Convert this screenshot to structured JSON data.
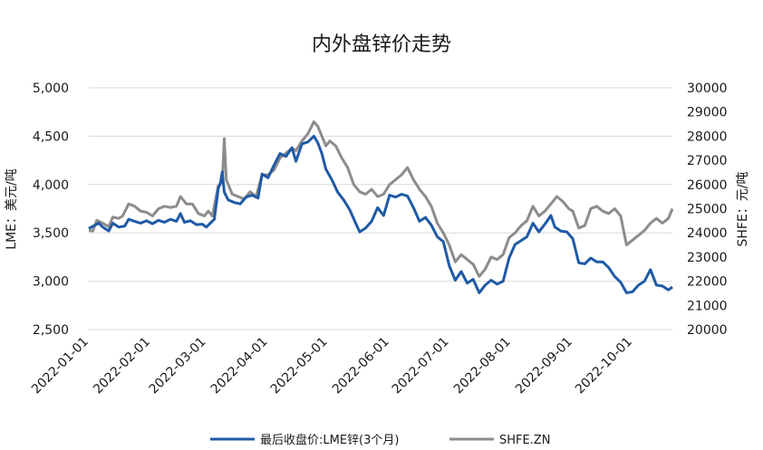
{
  "chart_data": {
    "type": "line",
    "title": "内外盘锌价走势",
    "ylabel_left": "LME：美元/吨",
    "ylabel_right": "SHFE：元/吨",
    "ylim_left": [
      2500,
      5000
    ],
    "ylim_right": [
      20000,
      30000
    ],
    "yticks_left": [
      "2,500",
      "3,000",
      "3,500",
      "4,000",
      "4,500",
      "5,000"
    ],
    "yticks_right": [
      "20000",
      "21000",
      "22000",
      "23000",
      "24000",
      "25000",
      "26000",
      "27000",
      "28000",
      "29000",
      "30000"
    ],
    "grid": true,
    "legend_position": "bottom",
    "x_tick_labels": [
      "2022-01-01",
      "2022-02-01",
      "2022-03-01",
      "2022-04-01",
      "2022-05-01",
      "2022-06-01",
      "2022-07-01",
      "2022-08-01",
      "2022-09-01",
      "2022-10-01"
    ],
    "series": [
      {
        "name": "最后收盘价:LME锌(3个月)",
        "axis": "left",
        "color": "#1f5aa6",
        "points": [
          [
            "2022-01-01",
            3545
          ],
          [
            "2022-01-04",
            3580
          ],
          [
            "2022-01-06",
            3600
          ],
          [
            "2022-01-08",
            3560
          ],
          [
            "2022-01-11",
            3520
          ],
          [
            "2022-01-13",
            3600
          ],
          [
            "2022-01-16",
            3560
          ],
          [
            "2022-01-19",
            3570
          ],
          [
            "2022-01-21",
            3640
          ],
          [
            "2022-01-24",
            3620
          ],
          [
            "2022-01-27",
            3600
          ],
          [
            "2022-01-30",
            3625
          ],
          [
            "2022-02-02",
            3595
          ],
          [
            "2022-02-05",
            3630
          ],
          [
            "2022-02-08",
            3610
          ],
          [
            "2022-02-11",
            3640
          ],
          [
            "2022-02-14",
            3620
          ],
          [
            "2022-02-16",
            3700
          ],
          [
            "2022-02-18",
            3610
          ],
          [
            "2022-02-21",
            3625
          ],
          [
            "2022-02-24",
            3585
          ],
          [
            "2022-02-27",
            3590
          ],
          [
            "2022-03-01",
            3560
          ],
          [
            "2022-03-03",
            3600
          ],
          [
            "2022-03-05",
            3640
          ],
          [
            "2022-03-07",
            3960
          ],
          [
            "2022-03-08",
            4010
          ],
          [
            "2022-03-09",
            4130
          ],
          [
            "2022-03-10",
            3920
          ],
          [
            "2022-03-12",
            3840
          ],
          [
            "2022-03-15",
            3815
          ],
          [
            "2022-03-18",
            3800
          ],
          [
            "2022-03-21",
            3870
          ],
          [
            "2022-03-24",
            3890
          ],
          [
            "2022-03-27",
            3860
          ],
          [
            "2022-03-29",
            4110
          ],
          [
            "2022-04-01",
            4070
          ],
          [
            "2022-04-04",
            4200
          ],
          [
            "2022-04-07",
            4320
          ],
          [
            "2022-04-10",
            4290
          ],
          [
            "2022-04-13",
            4380
          ],
          [
            "2022-04-15",
            4240
          ],
          [
            "2022-04-18",
            4420
          ],
          [
            "2022-04-21",
            4440
          ],
          [
            "2022-04-24",
            4500
          ],
          [
            "2022-04-26",
            4430
          ],
          [
            "2022-04-28",
            4320
          ],
          [
            "2022-04-30",
            4160
          ],
          [
            "2022-05-03",
            4050
          ],
          [
            "2022-05-06",
            3920
          ],
          [
            "2022-05-09",
            3840
          ],
          [
            "2022-05-12",
            3740
          ],
          [
            "2022-05-15",
            3600
          ],
          [
            "2022-05-17",
            3510
          ],
          [
            "2022-05-20",
            3550
          ],
          [
            "2022-05-23",
            3620
          ],
          [
            "2022-05-26",
            3760
          ],
          [
            "2022-05-29",
            3680
          ],
          [
            "2022-06-01",
            3890
          ],
          [
            "2022-06-04",
            3870
          ],
          [
            "2022-06-07",
            3900
          ],
          [
            "2022-06-10",
            3880
          ],
          [
            "2022-06-13",
            3760
          ],
          [
            "2022-06-16",
            3620
          ],
          [
            "2022-06-19",
            3660
          ],
          [
            "2022-06-22",
            3580
          ],
          [
            "2022-06-25",
            3460
          ],
          [
            "2022-06-28",
            3410
          ],
          [
            "2022-07-01",
            3160
          ],
          [
            "2022-07-04",
            3010
          ],
          [
            "2022-07-07",
            3100
          ],
          [
            "2022-07-10",
            2980
          ],
          [
            "2022-07-13",
            3020
          ],
          [
            "2022-07-16",
            2880
          ],
          [
            "2022-07-19",
            2960
          ],
          [
            "2022-07-22",
            3010
          ],
          [
            "2022-07-25",
            2970
          ],
          [
            "2022-07-28",
            3000
          ],
          [
            "2022-07-31",
            3240
          ],
          [
            "2022-08-03",
            3380
          ],
          [
            "2022-08-06",
            3420
          ],
          [
            "2022-08-09",
            3460
          ],
          [
            "2022-08-12",
            3600
          ],
          [
            "2022-08-15",
            3510
          ],
          [
            "2022-08-18",
            3590
          ],
          [
            "2022-08-21",
            3680
          ],
          [
            "2022-08-23",
            3560
          ],
          [
            "2022-08-26",
            3520
          ],
          [
            "2022-08-29",
            3510
          ],
          [
            "2022-09-01",
            3440
          ],
          [
            "2022-09-04",
            3190
          ],
          [
            "2022-09-07",
            3180
          ],
          [
            "2022-09-10",
            3240
          ],
          [
            "2022-09-13",
            3200
          ],
          [
            "2022-09-16",
            3200
          ],
          [
            "2022-09-19",
            3140
          ],
          [
            "2022-09-22",
            3050
          ],
          [
            "2022-09-25",
            2990
          ],
          [
            "2022-09-28",
            2880
          ],
          [
            "2022-10-01",
            2890
          ],
          [
            "2022-10-04",
            2960
          ],
          [
            "2022-10-07",
            3000
          ],
          [
            "2022-10-10",
            3120
          ],
          [
            "2022-10-13",
            2960
          ],
          [
            "2022-10-16",
            2950
          ],
          [
            "2022-10-19",
            2910
          ],
          [
            "2022-10-21",
            2940
          ]
        ]
      },
      {
        "name": "SHFE.ZN",
        "axis": "right",
        "color": "#8c8c8c",
        "points": [
          [
            "2022-01-01",
            24100
          ],
          [
            "2022-01-03",
            24080
          ],
          [
            "2022-01-05",
            24520
          ],
          [
            "2022-01-08",
            24400
          ],
          [
            "2022-01-11",
            24250
          ],
          [
            "2022-01-13",
            24650
          ],
          [
            "2022-01-16",
            24600
          ],
          [
            "2022-01-18",
            24700
          ],
          [
            "2022-01-21",
            25200
          ],
          [
            "2022-01-24",
            25100
          ],
          [
            "2022-01-27",
            24900
          ],
          [
            "2022-01-30",
            24850
          ],
          [
            "2022-02-02",
            24700
          ],
          [
            "2022-02-05",
            25000
          ],
          [
            "2022-02-08",
            25100
          ],
          [
            "2022-02-11",
            25050
          ],
          [
            "2022-02-14",
            25100
          ],
          [
            "2022-02-16",
            25500
          ],
          [
            "2022-02-19",
            25200
          ],
          [
            "2022-02-22",
            25200
          ],
          [
            "2022-02-25",
            24800
          ],
          [
            "2022-02-28",
            24700
          ],
          [
            "2022-03-02",
            24900
          ],
          [
            "2022-03-04",
            24700
          ],
          [
            "2022-03-07",
            25950
          ],
          [
            "2022-03-09",
            26100
          ],
          [
            "2022-03-10",
            27900
          ],
          [
            "2022-03-11",
            26200
          ],
          [
            "2022-03-14",
            25600
          ],
          [
            "2022-03-17",
            25500
          ],
          [
            "2022-03-20",
            25400
          ],
          [
            "2022-03-23",
            25700
          ],
          [
            "2022-03-26",
            25500
          ],
          [
            "2022-03-29",
            26400
          ],
          [
            "2022-04-01",
            26400
          ],
          [
            "2022-04-04",
            26600
          ],
          [
            "2022-04-07",
            27100
          ],
          [
            "2022-04-10",
            27300
          ],
          [
            "2022-04-13",
            27500
          ],
          [
            "2022-04-15",
            27400
          ],
          [
            "2022-04-18",
            27800
          ],
          [
            "2022-04-21",
            28100
          ],
          [
            "2022-04-24",
            28600
          ],
          [
            "2022-04-26",
            28400
          ],
          [
            "2022-04-28",
            28000
          ],
          [
            "2022-04-30",
            27600
          ],
          [
            "2022-05-02",
            27800
          ],
          [
            "2022-05-05",
            27600
          ],
          [
            "2022-05-08",
            27100
          ],
          [
            "2022-05-11",
            26700
          ],
          [
            "2022-05-14",
            26000
          ],
          [
            "2022-05-17",
            25700
          ],
          [
            "2022-05-20",
            25600
          ],
          [
            "2022-05-23",
            25800
          ],
          [
            "2022-05-26",
            25500
          ],
          [
            "2022-05-29",
            25600
          ],
          [
            "2022-06-01",
            26000
          ],
          [
            "2022-06-04",
            26200
          ],
          [
            "2022-06-07",
            26400
          ],
          [
            "2022-06-10",
            26700
          ],
          [
            "2022-06-13",
            26200
          ],
          [
            "2022-06-16",
            25800
          ],
          [
            "2022-06-19",
            25500
          ],
          [
            "2022-06-22",
            25100
          ],
          [
            "2022-06-25",
            24400
          ],
          [
            "2022-06-28",
            24000
          ],
          [
            "2022-07-01",
            23500
          ],
          [
            "2022-07-04",
            22800
          ],
          [
            "2022-07-07",
            23100
          ],
          [
            "2022-07-10",
            22900
          ],
          [
            "2022-07-13",
            22700
          ],
          [
            "2022-07-16",
            22200
          ],
          [
            "2022-07-19",
            22500
          ],
          [
            "2022-07-22",
            23000
          ],
          [
            "2022-07-25",
            22900
          ],
          [
            "2022-07-28",
            23100
          ],
          [
            "2022-07-31",
            23800
          ],
          [
            "2022-08-03",
            24000
          ],
          [
            "2022-08-06",
            24300
          ],
          [
            "2022-08-09",
            24500
          ],
          [
            "2022-08-12",
            25100
          ],
          [
            "2022-08-15",
            24700
          ],
          [
            "2022-08-18",
            24900
          ],
          [
            "2022-08-21",
            25200
          ],
          [
            "2022-08-24",
            25500
          ],
          [
            "2022-08-27",
            25300
          ],
          [
            "2022-08-30",
            25000
          ],
          [
            "2022-09-01",
            24900
          ],
          [
            "2022-09-04",
            24200
          ],
          [
            "2022-09-07",
            24300
          ],
          [
            "2022-09-10",
            25000
          ],
          [
            "2022-09-13",
            25100
          ],
          [
            "2022-09-16",
            24900
          ],
          [
            "2022-09-19",
            24800
          ],
          [
            "2022-09-22",
            25000
          ],
          [
            "2022-09-25",
            24700
          ],
          [
            "2022-09-28",
            23500
          ],
          [
            "2022-10-01",
            23700
          ],
          [
            "2022-10-04",
            23900
          ],
          [
            "2022-10-07",
            24100
          ],
          [
            "2022-10-10",
            24400
          ],
          [
            "2022-10-13",
            24600
          ],
          [
            "2022-10-16",
            24400
          ],
          [
            "2022-10-19",
            24600
          ],
          [
            "2022-10-21",
            25000
          ]
        ]
      }
    ]
  }
}
